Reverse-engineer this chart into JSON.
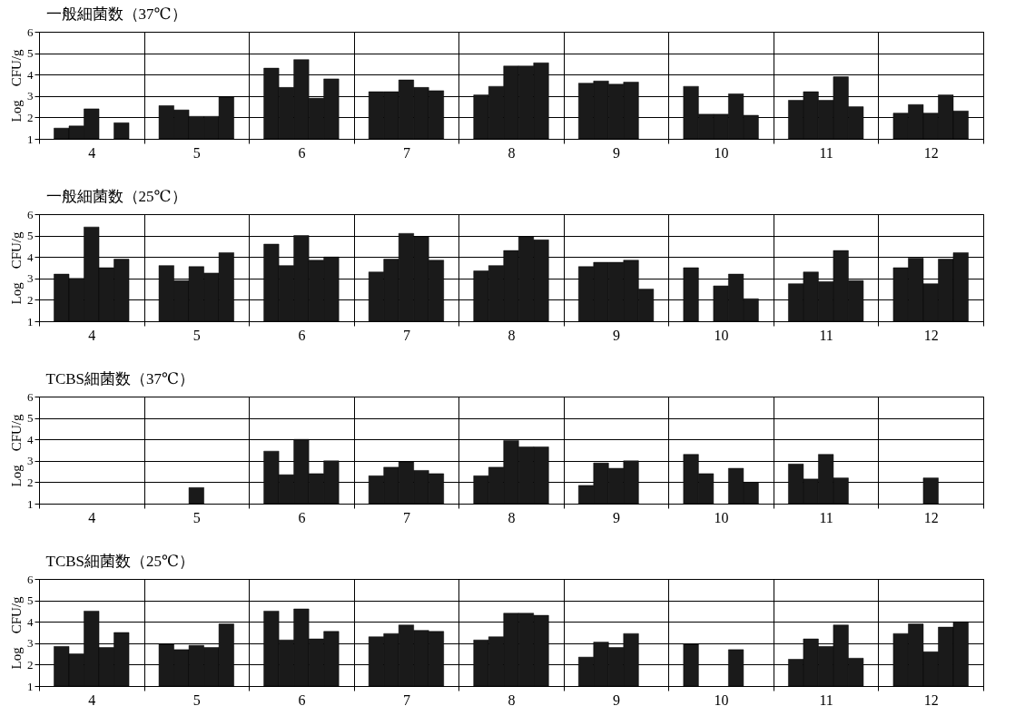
{
  "chart_data": [
    {
      "type": "bar",
      "title": "一般細菌数（37℃）",
      "ylabel": "Log　CFU/g",
      "categories": [
        "4",
        "5",
        "6",
        "7",
        "8",
        "9",
        "10",
        "11",
        "12"
      ],
      "ylim": [
        1,
        6
      ],
      "yticks": [
        1,
        2,
        3,
        4,
        5,
        6
      ],
      "grid": true,
      "series": [
        {
          "color": "#1a1a1a",
          "values": [
            1.5,
            2.55,
            4.3,
            3.2,
            3.05,
            3.6,
            3.45,
            2.8,
            2.2
          ]
        },
        {
          "color": "#1a1a1a",
          "values": [
            1.6,
            2.35,
            3.4,
            3.2,
            3.45,
            3.7,
            2.15,
            3.2,
            2.6
          ]
        },
        {
          "color": "#1a1a1a",
          "values": [
            2.4,
            2.05,
            4.7,
            3.75,
            4.4,
            3.55,
            2.15,
            2.8,
            2.2
          ]
        },
        {
          "color": "#1a1a1a",
          "values": [
            null,
            2.05,
            2.9,
            3.4,
            4.4,
            3.65,
            3.1,
            3.9,
            3.05
          ]
        },
        {
          "color": "#1a1a1a",
          "values": [
            1.75,
            2.95,
            3.8,
            3.25,
            4.55,
            null,
            2.1,
            2.5,
            2.3
          ]
        }
      ]
    },
    {
      "type": "bar",
      "title": "一般細菌数（25℃）",
      "ylabel": "Log　CFU/g",
      "categories": [
        "4",
        "5",
        "6",
        "7",
        "8",
        "9",
        "10",
        "11",
        "12"
      ],
      "ylim": [
        1,
        6
      ],
      "yticks": [
        1,
        2,
        3,
        4,
        5,
        6
      ],
      "grid": true,
      "series": [
        {
          "color": "#1a1a1a",
          "values": [
            3.2,
            3.6,
            4.6,
            3.3,
            3.35,
            3.55,
            3.5,
            2.75,
            3.5
          ]
        },
        {
          "color": "#1a1a1a",
          "values": [
            3.0,
            2.9,
            3.6,
            3.9,
            3.6,
            3.75,
            null,
            3.3,
            3.95
          ]
        },
        {
          "color": "#1a1a1a",
          "values": [
            5.4,
            3.55,
            5.0,
            5.1,
            4.3,
            3.75,
            2.65,
            2.85,
            2.75
          ]
        },
        {
          "color": "#1a1a1a",
          "values": [
            3.5,
            3.25,
            3.85,
            4.95,
            4.95,
            3.85,
            3.2,
            4.3,
            3.9
          ]
        },
        {
          "color": "#1a1a1a",
          "values": [
            3.9,
            4.2,
            4.0,
            3.85,
            4.8,
            2.5,
            2.05,
            2.9,
            4.2
          ]
        }
      ]
    },
    {
      "type": "bar",
      "title": "TCBS細菌数（37℃）",
      "ylabel": "Log　CFU/g",
      "categories": [
        "4",
        "5",
        "6",
        "7",
        "8",
        "9",
        "10",
        "11",
        "12"
      ],
      "ylim": [
        1,
        6
      ],
      "yticks": [
        1,
        2,
        3,
        4,
        5,
        6
      ],
      "grid": true,
      "series": [
        {
          "color": "#1a1a1a",
          "values": [
            null,
            null,
            3.45,
            2.3,
            2.3,
            1.85,
            3.3,
            2.85,
            null
          ]
        },
        {
          "color": "#1a1a1a",
          "values": [
            null,
            null,
            2.35,
            2.7,
            2.7,
            2.9,
            2.4,
            2.15,
            null
          ]
        },
        {
          "color": "#1a1a1a",
          "values": [
            null,
            1.75,
            4.0,
            2.95,
            3.95,
            2.65,
            null,
            3.3,
            2.2
          ]
        },
        {
          "color": "#1a1a1a",
          "values": [
            null,
            null,
            2.4,
            2.55,
            3.65,
            3.0,
            2.65,
            2.2,
            null
          ]
        },
        {
          "color": "#1a1a1a",
          "values": [
            null,
            null,
            3.0,
            2.4,
            3.65,
            null,
            2.0,
            null,
            null
          ]
        }
      ]
    },
    {
      "type": "bar",
      "title": "TCBS細菌数（25℃）",
      "ylabel": "Log　CFU/g",
      "categories": [
        "4",
        "5",
        "6",
        "7",
        "8",
        "9",
        "10",
        "11",
        "12"
      ],
      "ylim": [
        1,
        6
      ],
      "yticks": [
        1,
        2,
        3,
        4,
        5,
        6
      ],
      "grid": true,
      "series": [
        {
          "color": "#1a1a1a",
          "values": [
            2.85,
            2.95,
            4.5,
            3.3,
            3.15,
            2.35,
            2.95,
            2.25,
            3.45
          ]
        },
        {
          "color": "#1a1a1a",
          "values": [
            2.5,
            2.7,
            3.15,
            3.45,
            3.3,
            3.05,
            null,
            3.2,
            3.9
          ]
        },
        {
          "color": "#1a1a1a",
          "values": [
            4.5,
            2.9,
            4.6,
            3.85,
            4.4,
            2.8,
            null,
            2.85,
            2.6
          ]
        },
        {
          "color": "#1a1a1a",
          "values": [
            2.8,
            2.8,
            3.2,
            3.6,
            4.4,
            3.45,
            2.7,
            3.85,
            3.75
          ]
        },
        {
          "color": "#1a1a1a",
          "values": [
            3.5,
            3.9,
            3.55,
            3.55,
            4.3,
            null,
            null,
            2.3,
            4.0
          ]
        }
      ]
    }
  ]
}
